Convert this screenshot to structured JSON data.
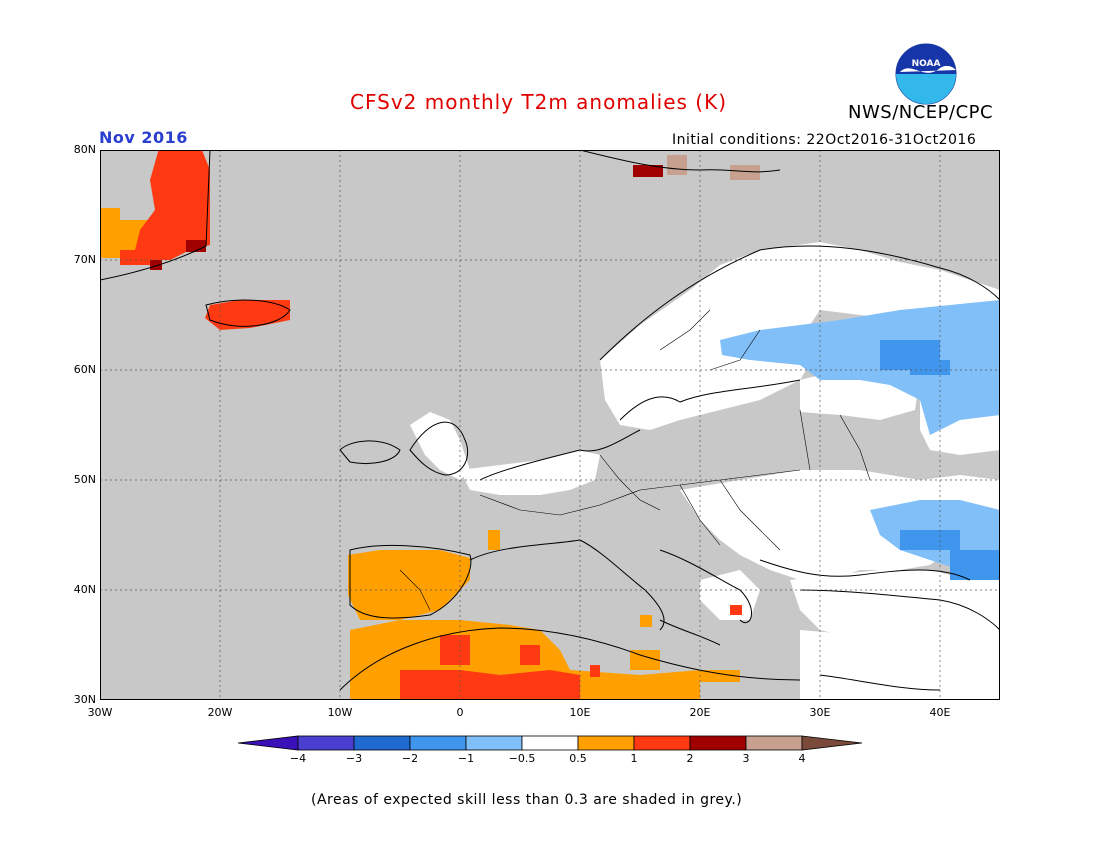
{
  "header": {
    "title": "CFSv2 monthly T2m anomalies (K)",
    "agency": "NWS/NCEP/CPC",
    "logo_text": "NOAA",
    "month": "Nov 2016",
    "initial_conditions": "Initial conditions: 22Oct2016-31Oct2016"
  },
  "colors": {
    "title": "#e00000",
    "month": "#2a3fd0",
    "low_skill_grey": "#c8c8c8",
    "neutral": "#ffffff",
    "warm_0_5_1": "#ff9f00",
    "warm_1_2": "#ff3a12",
    "warm_2_3": "#a00000",
    "warm_3_4": "#c8a090",
    "cold_neg1_neg0_5": "#80bff8",
    "cold_neg2_neg1": "#4095ec"
  },
  "map": {
    "lon_range": [
      -30,
      45
    ],
    "lat_range": [
      30,
      80
    ],
    "lat_labels": [
      "80N",
      "70N",
      "60N",
      "50N",
      "40N",
      "30N"
    ],
    "lon_labels": [
      "30W",
      "20W",
      "10W",
      "0",
      "10E",
      "20E",
      "30E",
      "40E"
    ]
  },
  "legend": {
    "labels": [
      "−4",
      "−3",
      "−2",
      "−1",
      "−0.5",
      "0.5",
      "1",
      "2",
      "3",
      "4"
    ],
    "colors": [
      "#3a10b8",
      "#4a3fd0",
      "#1f6ad0",
      "#4095ec",
      "#80bff8",
      "#ffffff",
      "#ff9f00",
      "#ff3a12",
      "#a00000",
      "#c8a090",
      "#7a4a3a"
    ]
  },
  "footnote": "(Areas of expected skill less than 0.3 are shaded in grey.)"
}
